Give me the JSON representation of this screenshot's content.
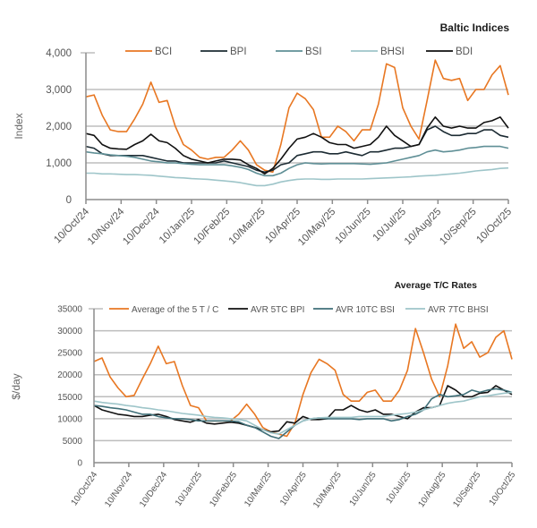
{
  "chart_data": [
    {
      "type": "line",
      "title": "Baltic Indices",
      "xlabel": "",
      "ylabel": "Index",
      "ylim": [
        0,
        4000
      ],
      "yticks": [
        0,
        1000,
        2000,
        3000,
        4000
      ],
      "ytick_labels": [
        "0",
        "1,000",
        "2,000",
        "3,000",
        "4,000"
      ],
      "grid": true,
      "legend_position": "top",
      "x_tick_labels": [
        "10/Oct/24",
        "10/Nov/24",
        "10/Dec/24",
        "10/Jan/25",
        "10/Feb/25",
        "10/Mar/25",
        "10/Apr/25",
        "10/May/25",
        "10/Jun/25",
        "10/Jul/25",
        "10/Aug/25",
        "10/Sep/25",
        "10/Oct/25"
      ],
      "x_note": "values sampled weekly from 10/Oct/24 to 10/Oct/25 (53 points)",
      "series": [
        {
          "name": "BCI",
          "color": "#e87722",
          "values": [
            2800,
            2850,
            2300,
            1900,
            1850,
            1850,
            2200,
            2600,
            3200,
            2650,
            2700,
            2000,
            1500,
            1350,
            1150,
            1100,
            1150,
            1150,
            1350,
            1600,
            1350,
            950,
            800,
            750,
            1500,
            2500,
            2900,
            2750,
            2450,
            1700,
            1700,
            2000,
            1850,
            1600,
            1900,
            1900,
            2600,
            3700,
            3600,
            2500,
            2000,
            1650,
            2700,
            3800,
            3300,
            3250,
            3300,
            2700,
            3000,
            3000,
            3400,
            3650,
            2850
          ]
        },
        {
          "name": "BPI",
          "color": "#1c2b33",
          "values": [
            1450,
            1400,
            1250,
            1200,
            1200,
            1200,
            1200,
            1200,
            1150,
            1100,
            1050,
            1050,
            1000,
            1000,
            1000,
            1000,
            1000,
            1050,
            1000,
            950,
            900,
            800,
            750,
            800,
            950,
            1000,
            1200,
            1250,
            1300,
            1300,
            1250,
            1250,
            1300,
            1250,
            1200,
            1300,
            1300,
            1350,
            1400,
            1400,
            1450,
            1500,
            1900,
            2000,
            1850,
            1750,
            1750,
            1800,
            1800,
            1900,
            1900,
            1750,
            1700
          ]
        },
        {
          "name": "BSI",
          "color": "#5f8f96",
          "values": [
            1300,
            1270,
            1250,
            1220,
            1200,
            1180,
            1150,
            1100,
            1050,
            1030,
            1000,
            1000,
            980,
            960,
            950,
            950,
            950,
            950,
            920,
            880,
            820,
            720,
            650,
            650,
            720,
            850,
            950,
            1000,
            980,
            970,
            980,
            980,
            980,
            980,
            970,
            960,
            980,
            1000,
            1050,
            1100,
            1150,
            1200,
            1300,
            1350,
            1300,
            1320,
            1350,
            1400,
            1420,
            1450,
            1450,
            1450,
            1400
          ]
        },
        {
          "name": "BHSI",
          "color": "#9ec5c9",
          "values": [
            720,
            720,
            700,
            700,
            690,
            680,
            680,
            670,
            660,
            640,
            620,
            600,
            590,
            570,
            560,
            550,
            530,
            510,
            490,
            460,
            420,
            380,
            380,
            420,
            480,
            520,
            550,
            560,
            560,
            550,
            550,
            560,
            560,
            560,
            560,
            570,
            580,
            590,
            600,
            610,
            620,
            640,
            650,
            660,
            680,
            700,
            720,
            750,
            780,
            800,
            820,
            850,
            860
          ]
        },
        {
          "name": "BDI",
          "color": "#111111",
          "values": [
            1800,
            1750,
            1500,
            1400,
            1380,
            1370,
            1500,
            1600,
            1780,
            1600,
            1550,
            1400,
            1200,
            1100,
            1050,
            1000,
            1050,
            1100,
            1100,
            1080,
            950,
            850,
            700,
            850,
            1100,
            1400,
            1650,
            1700,
            1800,
            1700,
            1550,
            1500,
            1500,
            1400,
            1450,
            1500,
            1700,
            2000,
            1750,
            1600,
            1450,
            1500,
            1950,
            2250,
            2000,
            1950,
            2000,
            1950,
            1950,
            2100,
            2150,
            2250,
            1950
          ]
        }
      ]
    },
    {
      "type": "line",
      "title": "Average T/C Rates",
      "xlabel": "",
      "ylabel": "$/day",
      "ylim": [
        0,
        35000
      ],
      "yticks": [
        0,
        5000,
        10000,
        15000,
        20000,
        25000,
        30000,
        35000
      ],
      "ytick_labels": [
        "0",
        "5000",
        "10000",
        "15000",
        "20000",
        "25000",
        "30000",
        "35000"
      ],
      "grid": true,
      "legend_position": "top",
      "x_tick_labels": [
        "10/Oct/24",
        "10/Nov/24",
        "10/Dec/24",
        "10/Jan/25",
        "10/Feb/25",
        "10/Mar/25",
        "10/Apr/25",
        "10/May/25",
        "10/Jun/25",
        "10/Jul/25",
        "10/Aug/25",
        "10/Sep/25",
        "10/Oct/25"
      ],
      "x_note": "values sampled weekly from 10/Oct/24 to 10/Oct/25 (53 points)",
      "series": [
        {
          "name": "Average of the 5 T / C",
          "color": "#e87722",
          "values": [
            23000,
            23800,
            19500,
            17000,
            15000,
            15300,
            19000,
            22500,
            26500,
            22500,
            23000,
            17500,
            13000,
            12500,
            9500,
            9500,
            9500,
            9500,
            11000,
            13300,
            11000,
            8000,
            7000,
            6500,
            6000,
            9000,
            15500,
            20500,
            23500,
            22500,
            21000,
            15500,
            14000,
            14000,
            16000,
            16500,
            14000,
            14000,
            16500,
            21000,
            30500,
            25000,
            19000,
            15000,
            22000,
            31500,
            26000,
            27500,
            24000,
            25000,
            28500,
            30000,
            23500
          ]
        },
        {
          "name": "AVR 5TC BPI",
          "color": "#111111",
          "values": [
            13000,
            12000,
            11500,
            11000,
            10800,
            10500,
            10500,
            10800,
            11000,
            10500,
            9800,
            9500,
            9200,
            9800,
            9000,
            8800,
            9000,
            9200,
            9000,
            8500,
            8000,
            7500,
            7000,
            7200,
            9300,
            9000,
            10500,
            9800,
            9800,
            10000,
            12000,
            12000,
            13000,
            12000,
            11500,
            12000,
            11000,
            11000,
            10500,
            10000,
            11500,
            12500,
            12500,
            13000,
            17500,
            16500,
            15000,
            15000,
            15800,
            16000,
            17500,
            16500,
            15500
          ]
        },
        {
          "name": "AVR 10TC BSI",
          "color": "#3f6f78",
          "values": [
            13000,
            12800,
            12500,
            12300,
            12000,
            11500,
            11000,
            11000,
            10500,
            10200,
            10000,
            10000,
            9800,
            9500,
            9500,
            9500,
            9500,
            9500,
            9300,
            8500,
            8000,
            7000,
            6000,
            5500,
            7000,
            8500,
            9500,
            10000,
            10200,
            10000,
            10000,
            10000,
            10000,
            9800,
            10000,
            10000,
            10000,
            9500,
            9800,
            10500,
            11000,
            12000,
            14500,
            15500,
            15000,
            15200,
            15500,
            16500,
            16000,
            16500,
            16800,
            16500,
            16000
          ]
        },
        {
          "name": "AVR 7TC BHSI",
          "color": "#9ec5c9",
          "values": [
            14000,
            13700,
            13500,
            13300,
            13000,
            12800,
            12500,
            12300,
            12000,
            11800,
            11500,
            11200,
            11000,
            10800,
            10500,
            10300,
            10200,
            10000,
            9800,
            9500,
            8500,
            7500,
            6800,
            6500,
            7500,
            8500,
            9500,
            10000,
            10200,
            10300,
            10300,
            10300,
            10300,
            10500,
            10500,
            10500,
            10500,
            10800,
            11000,
            11200,
            11500,
            12000,
            12500,
            13000,
            13500,
            13800,
            14000,
            14500,
            15000,
            15200,
            15500,
            15800,
            16000
          ]
        }
      ]
    }
  ]
}
